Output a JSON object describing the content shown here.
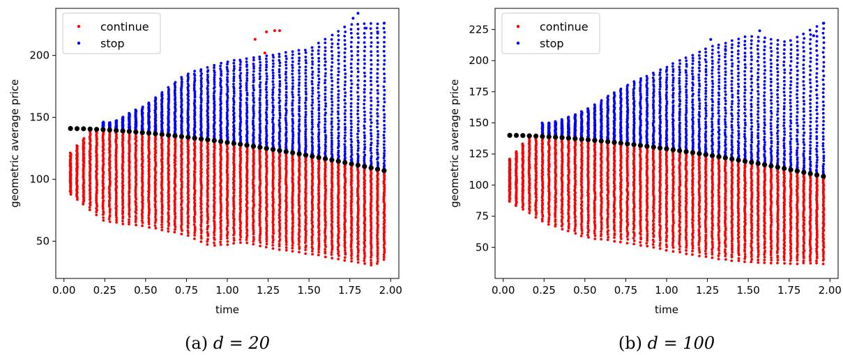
{
  "chart_data": [
    {
      "type": "scatter",
      "caption_prefix": "(a) ",
      "caption_math": "d = 20",
      "xlabel": "time",
      "ylabel": "geometric average price",
      "xlim": [
        -0.05,
        2.05
      ],
      "ylim": [
        20,
        238
      ],
      "xticks": [
        0.0,
        0.25,
        0.5,
        0.75,
        1.0,
        1.25,
        1.5,
        1.75,
        2.0
      ],
      "xtick_labels": [
        "0.00",
        "0.25",
        "0.50",
        "0.75",
        "1.00",
        "1.25",
        "1.50",
        "1.75",
        "2.00"
      ],
      "yticks": [
        50,
        100,
        150,
        200
      ],
      "ytick_labels": [
        "50",
        "100",
        "150",
        "200"
      ],
      "legend": {
        "position": "top-left",
        "entries": [
          {
            "label": "continue",
            "color": "#ff0000"
          },
          {
            "label": "stop",
            "color": "#0000ff"
          }
        ]
      },
      "boundary": {
        "color": "#000000",
        "start_value": 141,
        "end_value": 107
      },
      "continue_low": [
        [
          0.04,
          88
        ],
        [
          0.25,
          66
        ],
        [
          0.5,
          62
        ],
        [
          0.75,
          55
        ],
        [
          0.9,
          46
        ],
        [
          1.1,
          49
        ],
        [
          1.25,
          45
        ],
        [
          1.5,
          40
        ],
        [
          1.75,
          34
        ],
        [
          1.9,
          30
        ],
        [
          1.96,
          35
        ]
      ],
      "stop_high": [
        [
          0.3,
          146
        ],
        [
          0.5,
          160
        ],
        [
          0.75,
          185
        ],
        [
          1.0,
          195
        ],
        [
          1.25,
          200
        ],
        [
          1.5,
          205
        ],
        [
          1.75,
          225
        ],
        [
          1.96,
          226
        ]
      ],
      "outliers_stop": [
        [
          1.8,
          234
        ],
        [
          1.77,
          230
        ],
        [
          1.96,
          226
        ],
        [
          1.85,
          222
        ],
        [
          1.92,
          219
        ]
      ],
      "outliers_continue": [
        [
          1.17,
          213
        ],
        [
          1.24,
          219
        ],
        [
          1.29,
          220
        ],
        [
          1.32,
          220
        ],
        [
          1.23,
          202
        ]
      ],
      "seed": 7
    },
    {
      "type": "scatter",
      "caption_prefix": "(b) ",
      "caption_math": "d = 100",
      "xlabel": "time",
      "ylabel": "geometric average price",
      "xlim": [
        -0.05,
        2.05
      ],
      "ylim": [
        25,
        242
      ],
      "xticks": [
        0.0,
        0.25,
        0.5,
        0.75,
        1.0,
        1.25,
        1.5,
        1.75,
        2.0
      ],
      "xtick_labels": [
        "0.00",
        "0.25",
        "0.50",
        "0.75",
        "1.00",
        "1.25",
        "1.50",
        "1.75",
        "2.00"
      ],
      "yticks": [
        50,
        75,
        100,
        125,
        150,
        175,
        200,
        225
      ],
      "ytick_labels": [
        "50",
        "75",
        "100",
        "125",
        "150",
        "175",
        "200",
        "225"
      ],
      "legend": {
        "position": "top-left",
        "entries": [
          {
            "label": "continue",
            "color": "#ff0000"
          },
          {
            "label": "stop",
            "color": "#0000ff"
          }
        ]
      },
      "boundary": {
        "color": "#000000",
        "start_value": 140,
        "end_value": 107
      },
      "continue_low": [
        [
          0.04,
          87
        ],
        [
          0.25,
          70
        ],
        [
          0.5,
          58
        ],
        [
          0.75,
          54
        ],
        [
          1.0,
          48
        ],
        [
          1.25,
          42
        ],
        [
          1.5,
          38
        ],
        [
          1.75,
          37
        ],
        [
          1.96,
          37
        ]
      ],
      "stop_high": [
        [
          0.3,
          150
        ],
        [
          0.5,
          160
        ],
        [
          0.75,
          180
        ],
        [
          1.0,
          195
        ],
        [
          1.25,
          210
        ],
        [
          1.5,
          220
        ],
        [
          1.75,
          215
        ],
        [
          1.96,
          230
        ]
      ],
      "outliers_stop": [
        [
          1.57,
          224
        ],
        [
          1.96,
          230
        ],
        [
          1.27,
          217
        ],
        [
          1.9,
          220
        ],
        [
          1.36,
          209
        ]
      ],
      "outliers_continue": [],
      "seed": 11
    }
  ]
}
